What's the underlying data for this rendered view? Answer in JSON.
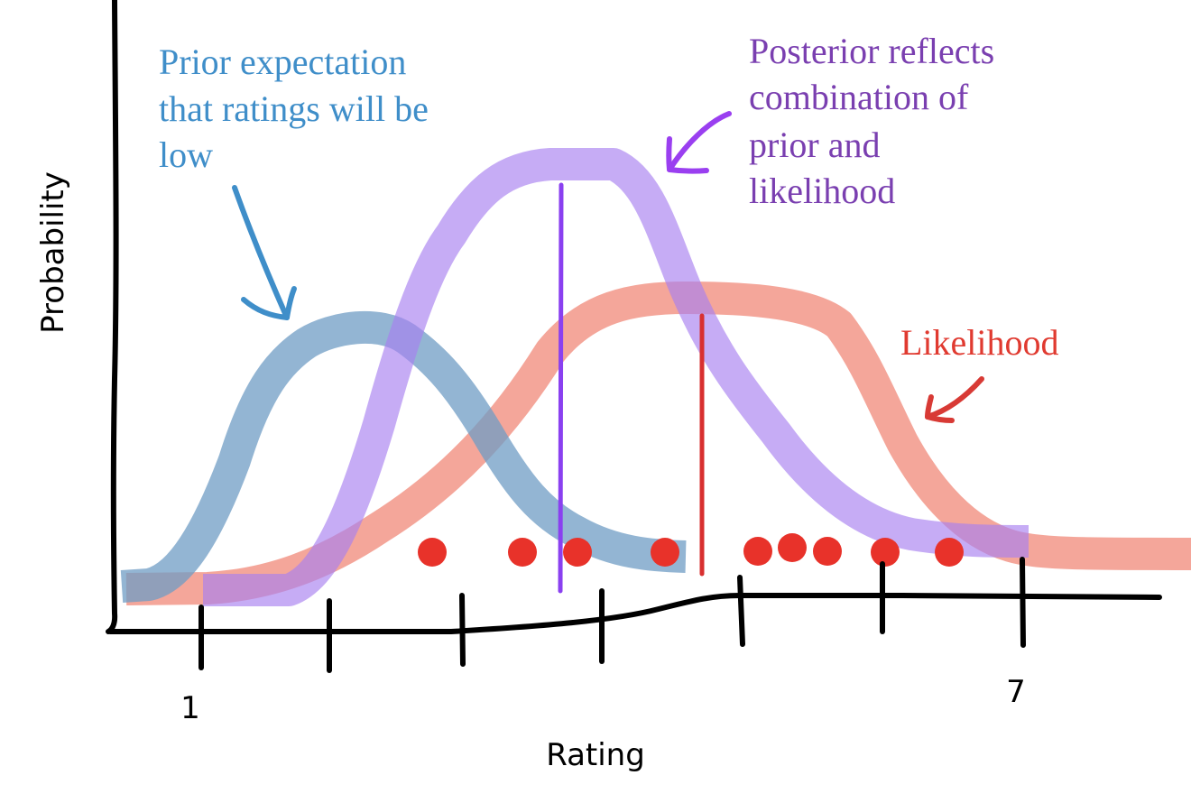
{
  "axes": {
    "y_label": "Probability",
    "x_label": "Rating",
    "tick_labels": {
      "first": "1",
      "last": "7"
    }
  },
  "annotations": {
    "prior": [
      "Prior expectation",
      "that ratings will be",
      "low"
    ],
    "posterior": [
      "Posterior reflects",
      "combination of",
      "prior and",
      "likelihood"
    ],
    "likelihood": "Likelihood"
  },
  "colors": {
    "prior": "#3f8ec9",
    "posterior": "#7a3fb0",
    "likelihood": "#e03a30",
    "prior_curve": "#6f9cc4",
    "posterior_curve": "#a87ff0",
    "likelihood_curve": "#f08878",
    "posterior_line": "#8a40f0",
    "likelihood_line": "#d83030",
    "data_dot": "#e8322a",
    "axis": "#000000"
  }
}
